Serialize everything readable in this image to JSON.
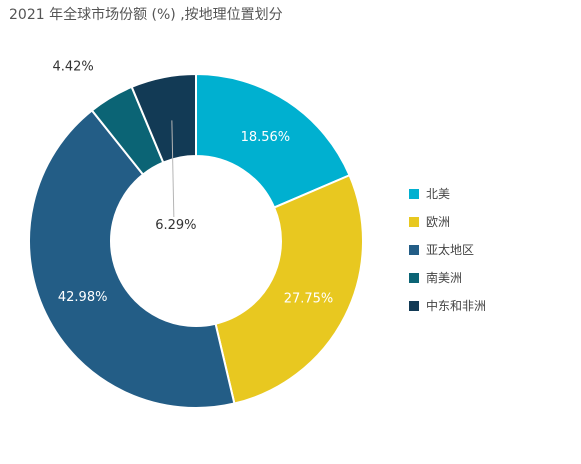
{
  "chart_data": {
    "type": "donut",
    "title": "2021 年全球市场份额 (%) ,按地理位置划分",
    "unit": "%",
    "legend_position": "right",
    "series": [
      {
        "name": "北美",
        "value": 18.56,
        "label": "18.56%",
        "color": "#00b0d0"
      },
      {
        "name": "欧洲",
        "value": 27.75,
        "label": "27.75%",
        "color": "#e8c820"
      },
      {
        "name": "亚太地区",
        "value": 42.98,
        "label": "42.98%",
        "color": "#235d86"
      },
      {
        "name": "南美洲",
        "value": 4.42,
        "label": "4.42%",
        "color": "#0b6475"
      },
      {
        "name": "中东和非洲",
        "value": 6.29,
        "label": "6.29%",
        "color": "#123a55"
      }
    ]
  }
}
